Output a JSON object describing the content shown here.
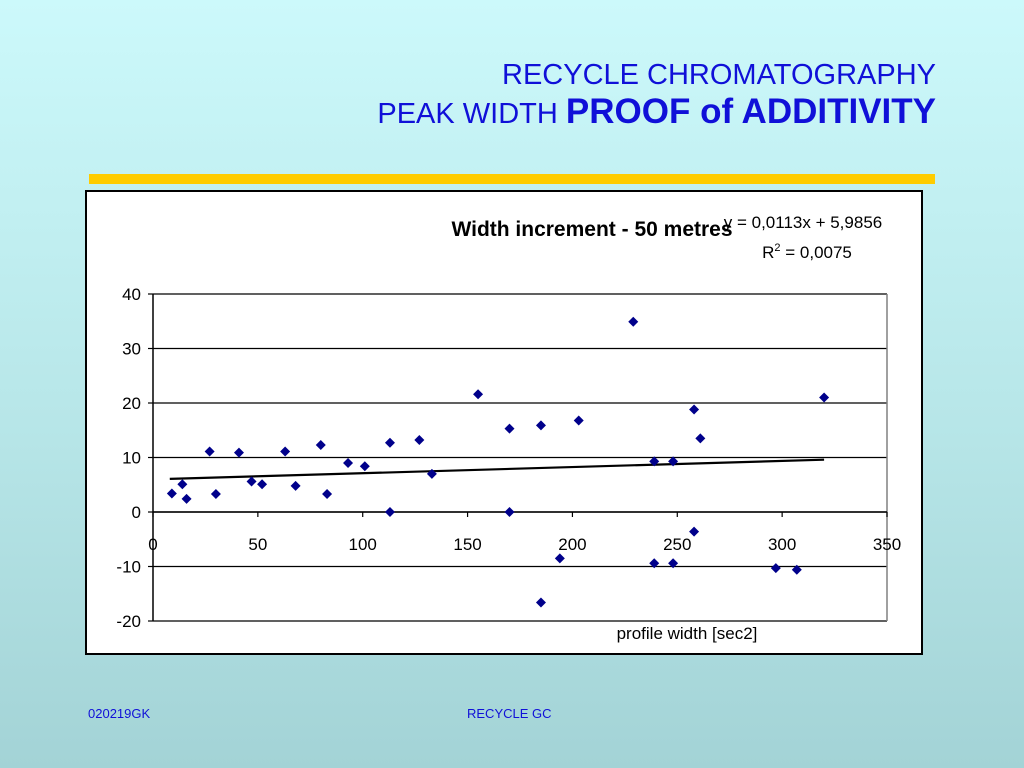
{
  "slide": {
    "title_line1": "RECYCLE CHROMATOGRAPHY",
    "title_line2_regular": "PEAK WIDTH",
    "title_line2_bold": "PROOF of ADDITIVITY",
    "footer_left": "020219GK",
    "footer_center": "RECYCLE GC",
    "title_color": "#1010d8",
    "rule_color": "#ffcc00"
  },
  "chart_data": {
    "type": "scatter",
    "title": "Width increment - 50 metres",
    "xlabel": "profile width [sec2]",
    "ylabel": "",
    "xlim": [
      0,
      350
    ],
    "ylim": [
      -20,
      40
    ],
    "x_ticks": [
      0,
      50,
      100,
      150,
      200,
      250,
      300,
      350
    ],
    "y_ticks": [
      40,
      30,
      20,
      10,
      0,
      -10,
      -20
    ],
    "grid": "horizontal",
    "legend": "none",
    "marker": "diamond",
    "marker_color": "#00008b",
    "trendline": {
      "type": "linear",
      "slope": 0.0113,
      "intercept": 5.9856,
      "x_range": [
        8,
        320
      ],
      "equation_label": "y = 0,0113x + 5,9856",
      "r2_label_prefix": "R",
      "r2_label_sup": "2",
      "r2_label_value": " = 0,0075"
    },
    "points": [
      {
        "x": 9,
        "y": 3.4
      },
      {
        "x": 14,
        "y": 5.1
      },
      {
        "x": 16,
        "y": 2.4
      },
      {
        "x": 27,
        "y": 11.1
      },
      {
        "x": 30,
        "y": 3.3
      },
      {
        "x": 41,
        "y": 10.9
      },
      {
        "x": 47,
        "y": 5.6
      },
      {
        "x": 52,
        "y": 5.1
      },
      {
        "x": 63,
        "y": 11.1
      },
      {
        "x": 68,
        "y": 4.8
      },
      {
        "x": 80,
        "y": 12.3
      },
      {
        "x": 83,
        "y": 3.3
      },
      {
        "x": 93,
        "y": 9.0
      },
      {
        "x": 101,
        "y": 8.4
      },
      {
        "x": 113,
        "y": 12.7
      },
      {
        "x": 113,
        "y": 0.0
      },
      {
        "x": 127,
        "y": 13.2
      },
      {
        "x": 133,
        "y": 7.0
      },
      {
        "x": 155,
        "y": 21.6
      },
      {
        "x": 170,
        "y": 15.3
      },
      {
        "x": 170,
        "y": 0.0
      },
      {
        "x": 185,
        "y": 15.9
      },
      {
        "x": 185,
        "y": -16.6
      },
      {
        "x": 194,
        "y": -8.5
      },
      {
        "x": 203,
        "y": 16.8
      },
      {
        "x": 229,
        "y": 34.9
      },
      {
        "x": 239,
        "y": 9.3
      },
      {
        "x": 239,
        "y": -9.4
      },
      {
        "x": 248,
        "y": 9.3
      },
      {
        "x": 248,
        "y": -9.4
      },
      {
        "x": 258,
        "y": 18.8
      },
      {
        "x": 258,
        "y": -3.6
      },
      {
        "x": 261,
        "y": 13.5
      },
      {
        "x": 297,
        "y": -10.3
      },
      {
        "x": 307,
        "y": -10.6
      },
      {
        "x": 320,
        "y": 21.0
      }
    ]
  }
}
